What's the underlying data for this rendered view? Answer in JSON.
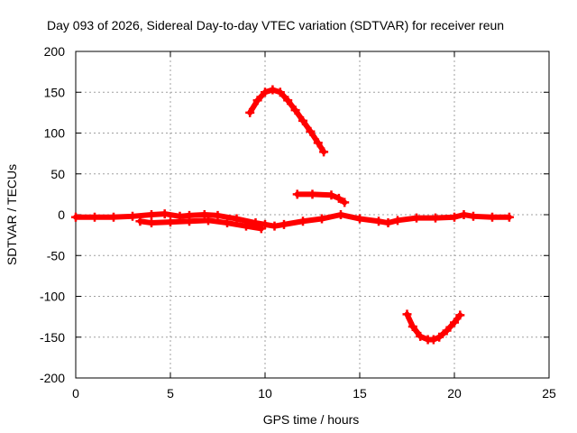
{
  "chart_data": {
    "type": "scatter",
    "title": "Day 093 of 2026, Sidereal Day-to-day VTEC variation (SDTVAR) for receiver reun",
    "xlabel": "GPS time / hours",
    "ylabel": "SDTVAR / TECUs",
    "xlim": [
      0,
      25
    ],
    "ylim": [
      -200,
      200
    ],
    "xticks": [
      0,
      5,
      10,
      15,
      20,
      25
    ],
    "yticks": [
      200,
      150,
      100,
      50,
      0,
      -50,
      -100,
      -150,
      -200
    ],
    "grid": true,
    "legend": "none",
    "marker": "plus",
    "color": "#ff0000",
    "series": [
      {
        "name": "baseline-upper",
        "x": [
          0,
          1,
          2,
          3,
          4,
          4.7,
          5.5,
          6,
          6.8,
          7.5,
          8.5,
          9.5,
          10.0,
          10.5,
          11,
          12,
          13,
          14,
          15,
          16,
          16.5,
          17,
          18,
          19,
          20,
          20.5,
          21,
          22,
          22.9
        ],
        "y": [
          -3,
          -3,
          -3,
          -2,
          0,
          1,
          -2,
          -1,
          0,
          -1,
          -5,
          -10,
          -12,
          -14,
          -12,
          -8,
          -5,
          0,
          -5,
          -8,
          -10,
          -7,
          -4,
          -4,
          -3,
          0,
          -2,
          -3,
          -3
        ]
      },
      {
        "name": "baseline-lower",
        "x": [
          3.4,
          4,
          5,
          6,
          7,
          8,
          9,
          9.8
        ],
        "y": [
          -8,
          -10,
          -9,
          -8,
          -7,
          -10,
          -14,
          -17
        ]
      },
      {
        "name": "arc-positive",
        "x": [
          9.2,
          9.6,
          10.0,
          10.4,
          10.8,
          11.2,
          11.6,
          12.0,
          12.4,
          12.8,
          13.1
        ],
        "y": [
          125,
          140,
          150,
          153,
          150,
          140,
          128,
          115,
          102,
          88,
          77
        ]
      },
      {
        "name": "shelf",
        "x": [
          11.7,
          12.5,
          13.5,
          13.9,
          14.2
        ],
        "y": [
          25,
          25,
          24,
          20,
          15
        ]
      },
      {
        "name": "arc-negative",
        "x": [
          17.5,
          17.8,
          18.2,
          18.6,
          18.9,
          19.2,
          19.6,
          20.0,
          20.3
        ],
        "y": [
          -122,
          -137,
          -149,
          -153,
          -153,
          -150,
          -142,
          -132,
          -123
        ]
      }
    ]
  }
}
